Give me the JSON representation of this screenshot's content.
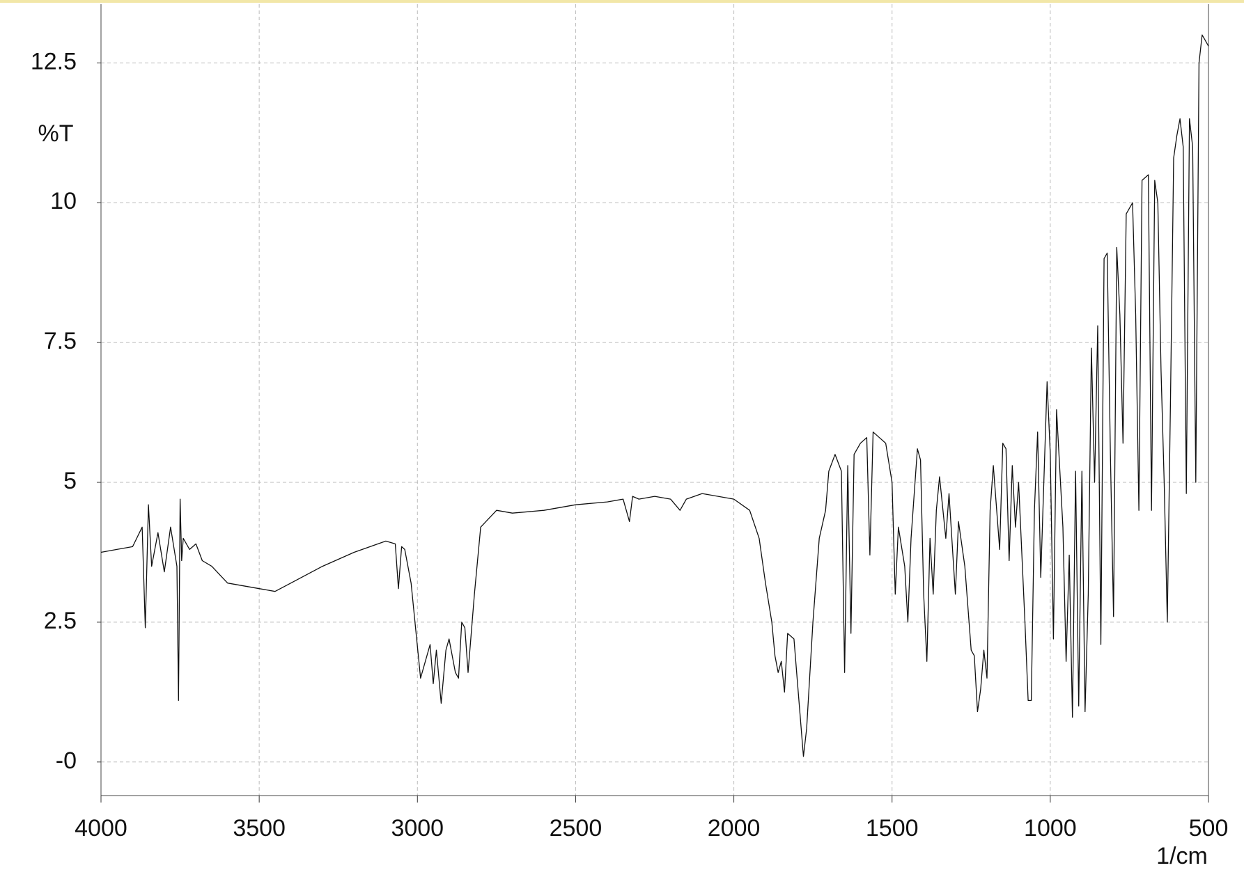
{
  "chart_data": {
    "type": "line",
    "y_label": "%T",
    "x_label": "1/cm",
    "color": "#111111",
    "grid": true,
    "x_reversed": true,
    "xlim": [
      4000,
      500
    ],
    "ylim": [
      -0.6,
      13.55
    ],
    "xticks": [
      4000,
      3500,
      3000,
      2500,
      2000,
      1500,
      1000,
      500
    ],
    "yticks": [
      {
        "value": 0,
        "label": "-0"
      },
      2.5,
      5,
      7.5,
      10,
      12.5
    ],
    "x": [
      4000,
      3950,
      3900,
      3870,
      3860,
      3850,
      3840,
      3820,
      3800,
      3780,
      3760,
      3755,
      3750,
      3745,
      3740,
      3720,
      3700,
      3680,
      3650,
      3600,
      3550,
      3500,
      3450,
      3400,
      3300,
      3200,
      3100,
      3070,
      3060,
      3050,
      3040,
      3020,
      2990,
      2960,
      2950,
      2940,
      2925,
      2910,
      2900,
      2880,
      2870,
      2860,
      2850,
      2840,
      2820,
      2800,
      2750,
      2700,
      2600,
      2500,
      2400,
      2350,
      2330,
      2320,
      2300,
      2250,
      2200,
      2170,
      2150,
      2100,
      2000,
      1950,
      1920,
      1900,
      1880,
      1870,
      1860,
      1850,
      1840,
      1830,
      1810,
      1800,
      1780,
      1770,
      1750,
      1730,
      1710,
      1700,
      1680,
      1660,
      1650,
      1640,
      1630,
      1620,
      1600,
      1580,
      1570,
      1560,
      1540,
      1520,
      1500,
      1490,
      1480,
      1460,
      1450,
      1440,
      1420,
      1410,
      1400,
      1390,
      1380,
      1370,
      1360,
      1350,
      1330,
      1320,
      1300,
      1290,
      1270,
      1250,
      1240,
      1230,
      1220,
      1210,
      1200,
      1190,
      1180,
      1160,
      1150,
      1140,
      1130,
      1120,
      1110,
      1100,
      1080,
      1070,
      1060,
      1050,
      1040,
      1030,
      1010,
      1000,
      990,
      980,
      960,
      950,
      940,
      930,
      920,
      910,
      900,
      890,
      880,
      870,
      860,
      850,
      840,
      830,
      820,
      810,
      800,
      790,
      780,
      770,
      760,
      740,
      730,
      720,
      710,
      690,
      680,
      670,
      660,
      650,
      640,
      630,
      620,
      610,
      600,
      590,
      580,
      570,
      560,
      550,
      540,
      530,
      520,
      510,
      500
    ],
    "values": [
      3.75,
      3.8,
      3.85,
      4.2,
      2.4,
      4.6,
      3.5,
      4.1,
      3.4,
      4.2,
      3.5,
      1.1,
      4.7,
      3.6,
      4.0,
      3.8,
      3.9,
      3.6,
      3.5,
      3.2,
      3.15,
      3.1,
      3.05,
      3.2,
      3.5,
      3.75,
      3.95,
      3.9,
      3.1,
      3.85,
      3.8,
      3.2,
      1.5,
      2.1,
      1.4,
      2.0,
      1.05,
      2.0,
      2.2,
      1.6,
      1.5,
      2.5,
      2.4,
      1.6,
      3.0,
      4.2,
      4.5,
      4.45,
      4.5,
      4.6,
      4.65,
      4.7,
      4.3,
      4.75,
      4.7,
      4.75,
      4.7,
      4.5,
      4.7,
      4.8,
      4.7,
      4.5,
      4.0,
      3.2,
      2.5,
      1.9,
      1.6,
      1.8,
      1.25,
      2.3,
      2.2,
      1.5,
      0.1,
      0.6,
      2.5,
      4.0,
      4.5,
      5.2,
      5.5,
      5.2,
      1.6,
      5.3,
      2.3,
      5.5,
      5.7,
      5.8,
      3.7,
      5.9,
      5.8,
      5.7,
      5.0,
      3.0,
      4.2,
      3.5,
      2.5,
      4.0,
      5.6,
      5.4,
      3.0,
      1.8,
      4.0,
      3.0,
      4.5,
      5.1,
      4.0,
      4.8,
      3.0,
      4.3,
      3.5,
      2.0,
      1.9,
      0.9,
      1.3,
      2.0,
      1.5,
      4.5,
      5.3,
      3.8,
      5.7,
      5.6,
      3.6,
      5.3,
      4.2,
      5.0,
      2.5,
      1.1,
      1.1,
      4.5,
      5.9,
      3.3,
      6.8,
      5.5,
      2.2,
      6.3,
      4.2,
      1.8,
      3.7,
      0.8,
      5.2,
      1.0,
      5.2,
      0.9,
      3.0,
      7.4,
      5.0,
      7.8,
      2.1,
      9.0,
      9.1,
      5.5,
      2.6,
      9.2,
      8.0,
      5.7,
      9.8,
      10.0,
      8.0,
      4.5,
      10.4,
      10.5,
      4.5,
      10.4,
      10.0,
      7.0,
      5.0,
      2.5,
      6.5,
      10.8,
      11.2,
      11.5,
      11.0,
      4.8,
      11.5,
      11.0,
      5.0,
      12.5,
      13.0,
      12.9,
      12.8
    ]
  }
}
